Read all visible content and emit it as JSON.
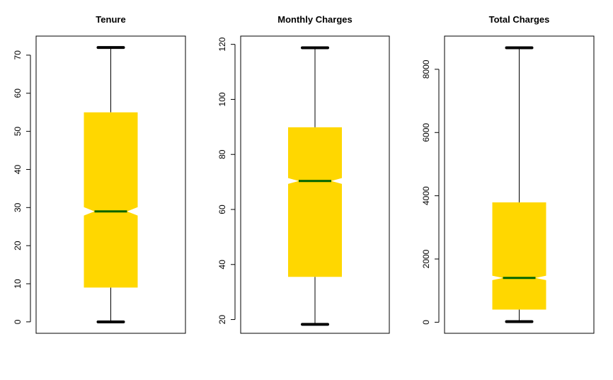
{
  "chart_data": [
    {
      "type": "boxplot",
      "title": "Tenure",
      "ylim": [
        -3,
        75
      ],
      "yticks": [
        0,
        10,
        20,
        30,
        40,
        50,
        60,
        70
      ],
      "box": {
        "min": 0,
        "q1": 9,
        "median": 29,
        "q3": 55,
        "max": 72,
        "notch_low": 27.9,
        "notch_high": 30.1
      },
      "fill": "#FFD700",
      "median_color": "#006400"
    },
    {
      "type": "boxplot",
      "title": "Monthly Charges",
      "ylim": [
        15,
        123
      ],
      "yticks": [
        20,
        40,
        60,
        80,
        100,
        120
      ],
      "box": {
        "min": 18.25,
        "q1": 35.5,
        "median": 70.35,
        "q3": 89.85,
        "max": 118.75,
        "notch_low": 69.3,
        "notch_high": 71.4
      },
      "fill": "#FFD700",
      "median_color": "#006400"
    },
    {
      "type": "boxplot",
      "title": "Total Charges",
      "ylim": [
        -350,
        9050
      ],
      "yticks": [
        0,
        2000,
        4000,
        6000,
        8000
      ],
      "box": {
        "min": 19,
        "q1": 400,
        "median": 1400,
        "q3": 3790,
        "max": 8680,
        "notch_low": 1330,
        "notch_high": 1470
      },
      "fill": "#FFD700",
      "median_color": "#006400"
    }
  ]
}
